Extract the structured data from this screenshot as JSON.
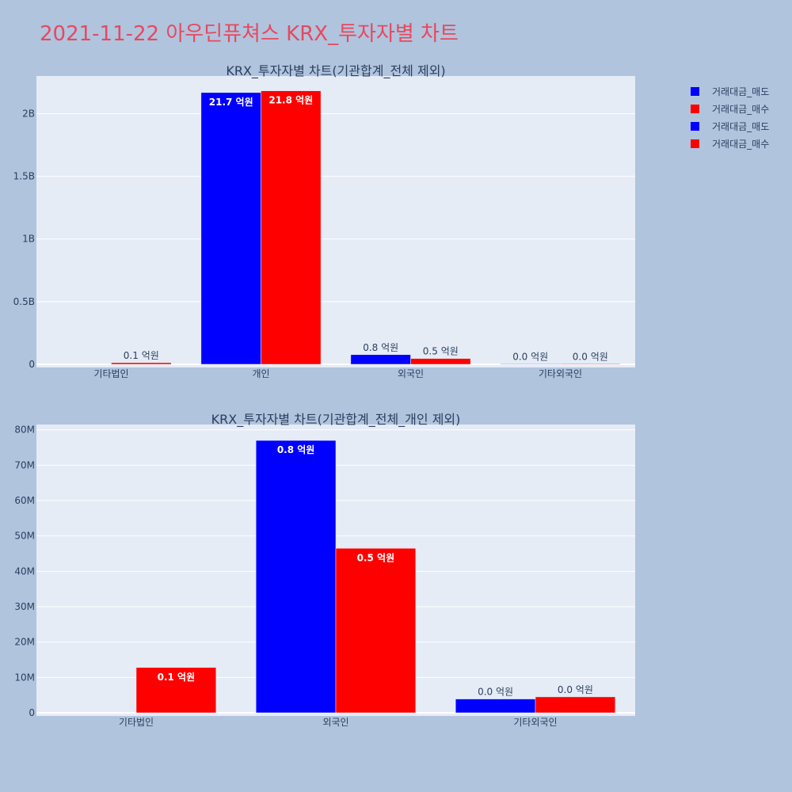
{
  "page": {
    "title": "2021-11-22 아우딘퓨쳐스 KRX_투자자별 차트"
  },
  "colors": {
    "sell": "#0000ff",
    "buy": "#ff0000",
    "plot_bg": "#e5ecf6",
    "page_bg": "#b0c4de",
    "text": "#2a3f5f"
  },
  "legend": [
    {
      "label": "거래대금_매도",
      "color": "#0000ff"
    },
    {
      "label": "거래대금_매수",
      "color": "#ff0000"
    },
    {
      "label": "거래대금_매도",
      "color": "#0000ff"
    },
    {
      "label": "거래대금_매수",
      "color": "#ff0000"
    }
  ],
  "chart_data": [
    {
      "type": "bar",
      "title": "KRX_투자자별 차트(기관합계_전체 제외)",
      "categories": [
        "기타법인",
        "개인",
        "외국인",
        "기타외국인"
      ],
      "ylim": [
        0,
        2300000000
      ],
      "yticks": [
        0,
        500000000,
        1000000000,
        1500000000,
        2000000000
      ],
      "ytick_labels": [
        "0",
        "0.5B",
        "1B",
        "1.5B",
        "2B"
      ],
      "grid": true,
      "series": [
        {
          "name": "거래대금_매도",
          "color": "#0000ff",
          "values": [
            0,
            2168000000,
            77000000,
            3900000
          ],
          "labels": [
            "",
            "21.7 억원",
            "0.8 억원",
            "0.0 억원"
          ],
          "label_inside": [
            false,
            true,
            false,
            false
          ]
        },
        {
          "name": "거래대금_매수",
          "color": "#ff0000",
          "values": [
            12800000,
            2182000000,
            46500000,
            4500000
          ],
          "labels": [
            "0.1 억원",
            "21.8 억원",
            "0.5 억원",
            "0.0 억원"
          ],
          "label_inside": [
            false,
            true,
            false,
            false
          ]
        }
      ]
    },
    {
      "type": "bar",
      "title": "KRX_투자자별 차트(기관합계_전체_개인 제외)",
      "categories": [
        "기타법인",
        "외국인",
        "기타외국인"
      ],
      "ylim": [
        0,
        81500000
      ],
      "yticks": [
        0,
        10000000,
        20000000,
        30000000,
        40000000,
        50000000,
        60000000,
        70000000,
        80000000
      ],
      "ytick_labels": [
        "0",
        "10M",
        "20M",
        "30M",
        "40M",
        "50M",
        "60M",
        "70M",
        "80M"
      ],
      "grid": true,
      "series": [
        {
          "name": "거래대금_매도",
          "color": "#0000ff",
          "values": [
            0,
            77000000,
            3900000
          ],
          "labels": [
            "",
            "0.8 억원",
            "0.0 억원"
          ],
          "label_inside": [
            false,
            true,
            false
          ]
        },
        {
          "name": "거래대금_매수",
          "color": "#ff0000",
          "values": [
            12800000,
            46500000,
            4500000
          ],
          "labels": [
            "0.1 억원",
            "0.5 억원",
            "0.0 억원"
          ],
          "label_inside": [
            true,
            true,
            false
          ]
        }
      ]
    }
  ]
}
